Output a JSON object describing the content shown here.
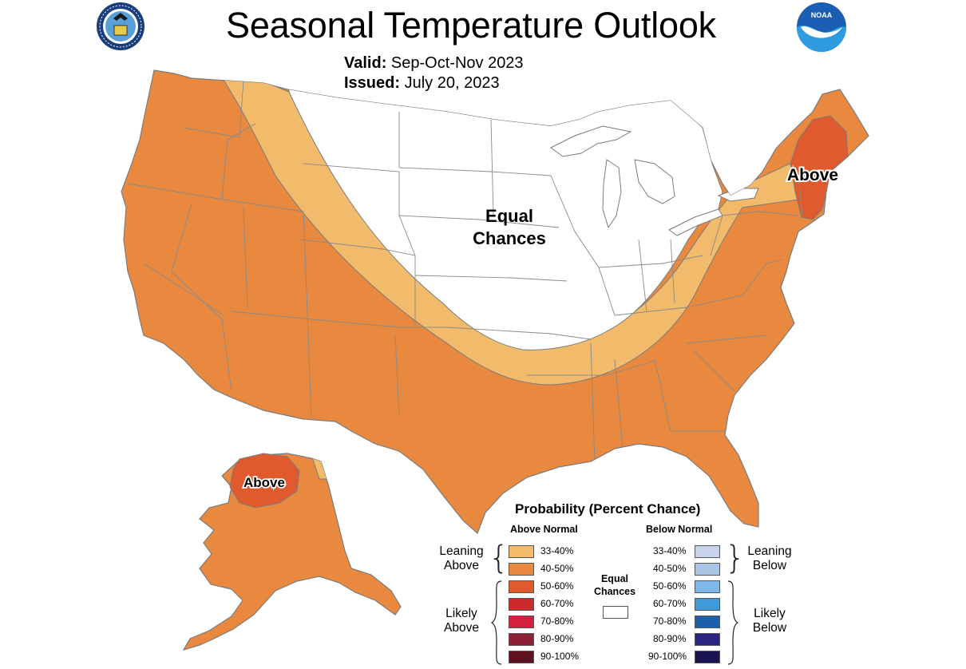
{
  "title": "Seasonal Temperature Outlook",
  "valid": {
    "label": "Valid:",
    "value": "Sep-Oct-Nov 2023"
  },
  "issued": {
    "label": "Issued:",
    "value": "July 20, 2023"
  },
  "logos": {
    "left": "seal-icon",
    "right": "noaa-logo-icon",
    "right_text": "NOAA"
  },
  "map_labels": {
    "equal_chances_line1": "Equal",
    "equal_chances_line2": "Chances",
    "above_northeast": "Above",
    "above_alaska": "Above"
  },
  "colors": {
    "above_33_40": "#f2bb6b",
    "above_40_50": "#e8893f",
    "above_50_60": "#e05a2e",
    "above_60_70": "#cc2b2b",
    "above_70_80": "#d41f40",
    "above_80_90": "#8c2034",
    "above_90_100": "#5e1221",
    "below_33_40": "#c6d3ea",
    "below_40_50": "#a9c4e4",
    "below_50_60": "#7fb8e8",
    "below_60_70": "#3f9ad9",
    "below_70_80": "#1f5fa8",
    "below_80_90": "#2b2480",
    "below_90_100": "#1a1550",
    "equal_chances": "#ffffff",
    "border": "#7b7b7b"
  },
  "legend": {
    "title": "Probability (Percent Chance)",
    "above_header": "Above Normal",
    "below_header": "Below Normal",
    "equal_chances_line1": "Equal",
    "equal_chances_line2": "Chances",
    "leaning_above_line1": "Leaning",
    "leaning_above_line2": "Above",
    "likely_above_line1": "Likely",
    "likely_above_line2": "Above",
    "leaning_below_line1": "Leaning",
    "leaning_below_line2": "Below",
    "likely_below_line1": "Likely",
    "likely_below_line2": "Below",
    "above_ranges": [
      "33-40%",
      "40-50%",
      "50-60%",
      "60-70%",
      "70-80%",
      "80-90%",
      "90-100%"
    ],
    "below_ranges": [
      "33-40%",
      "40-50%",
      "50-60%",
      "60-70%",
      "70-80%",
      "80-90%",
      "90-100%"
    ]
  }
}
